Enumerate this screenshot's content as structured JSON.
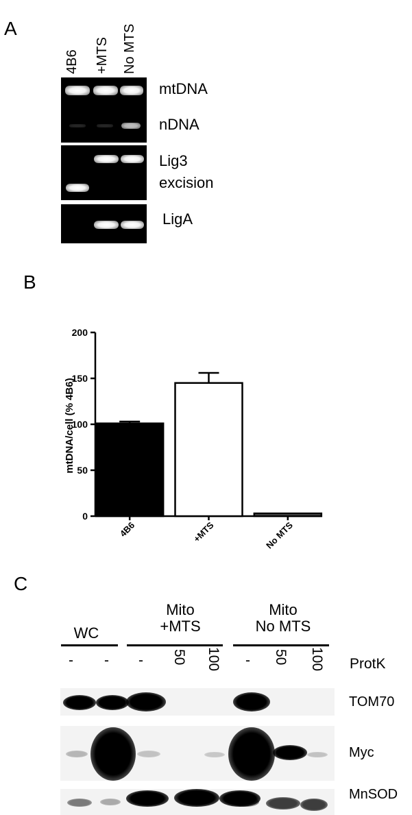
{
  "panels": {
    "a": "A",
    "b": "B",
    "c": "C"
  },
  "panel_a": {
    "lanes": [
      "4B6",
      "+MTS",
      "No MTS"
    ],
    "rows": [
      {
        "labels": [
          "mtDNA",
          "nDNA"
        ]
      },
      {
        "labels": [
          "Lig3",
          "excision"
        ]
      },
      {
        "labels": [
          "LigA"
        ]
      }
    ]
  },
  "chart_data": {
    "type": "bar",
    "categories": [
      "4B6",
      "+MTS",
      "No MTS"
    ],
    "values": [
      101,
      145,
      3
    ],
    "errors": [
      2,
      11,
      0.5
    ],
    "bar_colors": [
      "#000000",
      "#ffffff",
      "#555555"
    ],
    "ylabel": "mtDNA/cell (% 4B6)",
    "ylim": [
      0,
      200
    ],
    "yticks": [
      0,
      50,
      100,
      150,
      200
    ],
    "grid": false
  },
  "panel_c": {
    "groups": [
      {
        "lines": [
          "WC"
        ]
      },
      {
        "lines": [
          "Mito",
          "+MTS"
        ]
      },
      {
        "lines": [
          "Mito",
          "No MTS"
        ]
      }
    ],
    "protk_label": "ProtK",
    "protk_values": [
      "-",
      "-",
      "-",
      "50",
      "100",
      "-",
      "50",
      "100"
    ],
    "blots": [
      "TOM70",
      "Myc",
      "MnSOD"
    ]
  }
}
